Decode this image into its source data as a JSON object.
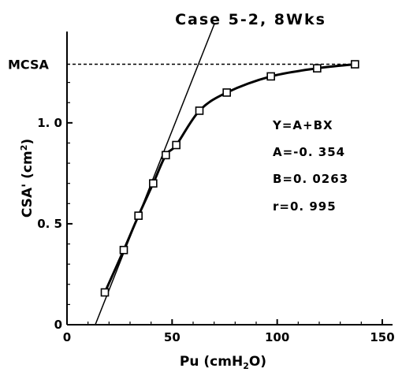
{
  "chart_data": {
    "type": "scatter",
    "title": "Case 5-2, 8Wks",
    "xlabel": {
      "main": "Pu (cmH",
      "sub": "2",
      "tail": "O)"
    },
    "ylabel": {
      "main": "CSA' (cm",
      "sup": "2",
      "tail": ")"
    },
    "xlim": [
      0,
      150
    ],
    "ylim": [
      0,
      1.3
    ],
    "xticks": [
      0,
      50,
      100,
      150
    ],
    "xtick_labels": [
      "0",
      "50",
      "100",
      "150"
    ],
    "yticks": [
      0,
      0.5,
      1.0
    ],
    "ytick_labels": [
      "0",
      "0. 5",
      "1. 0"
    ],
    "reference_line": {
      "label": "MCSA",
      "y": 1.29
    },
    "series": [
      {
        "type": "scatter-curve",
        "x": [
          18,
          27,
          34,
          41,
          47,
          52,
          63,
          76,
          97,
          119,
          137
        ],
        "y": [
          0.16,
          0.37,
          0.54,
          0.7,
          0.84,
          0.89,
          1.06,
          1.15,
          1.23,
          1.27,
          1.29
        ]
      }
    ],
    "fit_line": {
      "intercept": -0.354,
      "slope": 0.0263
    },
    "annotation": [
      "Y=A+BX",
      "A=-0. 354",
      "B=0. 0263",
      "r=0. 995"
    ]
  }
}
